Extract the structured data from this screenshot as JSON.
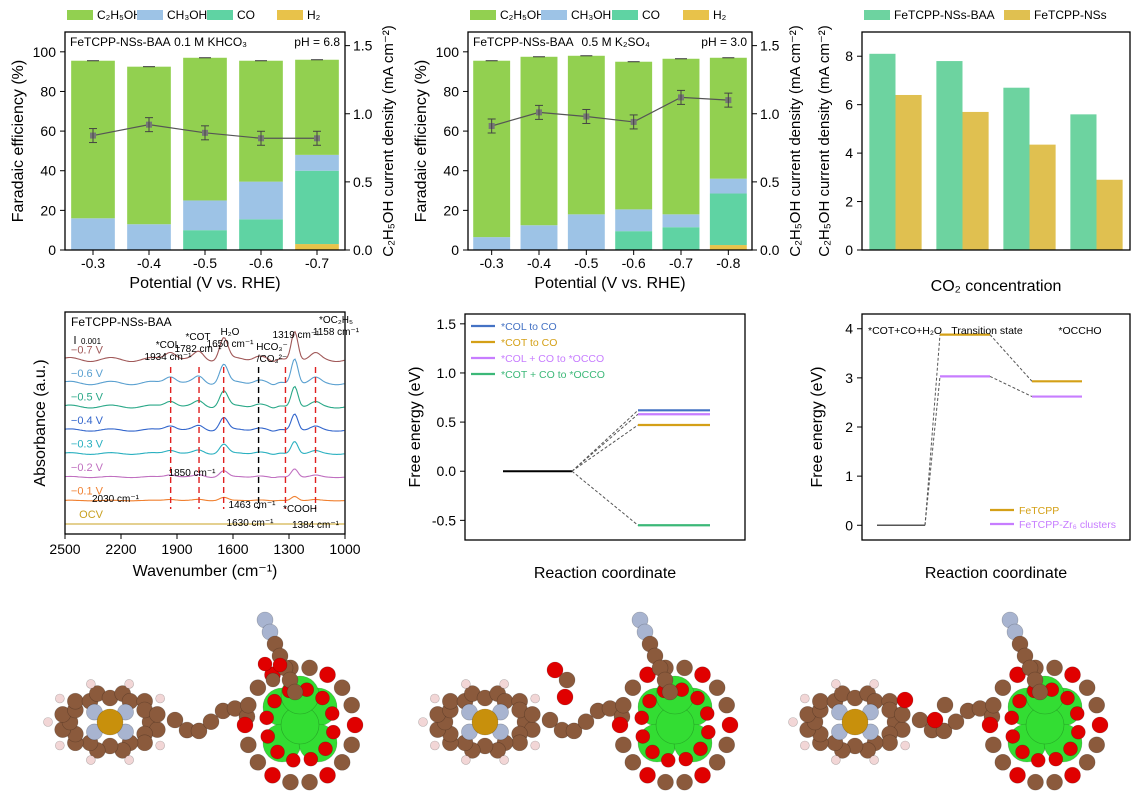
{
  "colors": {
    "c2h5oh": "#92d050",
    "ch3oh": "#9dc3e6",
    "co": "#5fd3a3",
    "h2": "#e8c24a",
    "line": "#555555",
    "baa": "#6dd3a0",
    "nss": "#e0c050",
    "path_co_l": "#4472c4",
    "path_co_t": "#d4a017",
    "path_occo_l": "#c77dff",
    "path_occo_t": "#3cb878",
    "fetcpp": "#d4a017",
    "fetcpp_zr": "#c77dff",
    "atom_c": "#8b5a3c",
    "atom_n": "#a8b4d0",
    "atom_o": "#e00000",
    "atom_h": "#f2d6d6",
    "atom_fe": "#c8900c",
    "atom_zr": "#33dd33"
  },
  "legend_products": [
    "C₂H₅OH",
    "CH₃OH",
    "CO",
    "H₂"
  ],
  "chart_data": [
    {
      "type": "bar",
      "stacked": true,
      "sample": "FeTCPP-NSs-BAA",
      "electrolyte": "0.1 M KHCO₃",
      "ph": "pH = 6.8",
      "xlabel": "Potential (V vs. RHE)",
      "ylabel": "Faradaic efficiency (%)",
      "y2label": "C₂H₅OH current density (mA cm⁻²)",
      "categories": [
        "-0.3",
        "-0.4",
        "-0.5",
        "-0.6",
        "-0.7"
      ],
      "ylim": [
        0,
        110
      ],
      "yticks": [
        0,
        20,
        40,
        60,
        80,
        100
      ],
      "y2lim": [
        0,
        1.6
      ],
      "y2ticks": [
        "0.0",
        "0.5",
        "1.0",
        "1.5"
      ],
      "series": [
        {
          "name": "H₂",
          "values": [
            0,
            0,
            0,
            0,
            3
          ]
        },
        {
          "name": "CO",
          "values": [
            0,
            0,
            10,
            15.5,
            37
          ]
        },
        {
          "name": "CH₃OH",
          "values": [
            16,
            13,
            15,
            19,
            8
          ]
        },
        {
          "name": "C₂H₅OH",
          "values": [
            79.5,
            79.5,
            72,
            61,
            48
          ]
        }
      ],
      "totals": [
        95.5,
        92.5,
        97,
        95.5,
        96
      ],
      "current_density": [
        0.84,
        0.92,
        0.86,
        0.82,
        0.82
      ]
    },
    {
      "type": "bar",
      "stacked": true,
      "sample": "FeTCPP-NSs-BAA",
      "electrolyte": "0.5 M K₂SO₄",
      "ph": "pH = 3.0",
      "xlabel": "Potential (V vs. RHE)",
      "ylabel": "Faradaic efficiency (%)",
      "y2label": "C₂H₅OH current density (mA cm⁻²)",
      "categories": [
        "-0.3",
        "-0.4",
        "-0.5",
        "-0.6",
        "-0.7",
        "-0.8"
      ],
      "ylim": [
        0,
        110
      ],
      "yticks": [
        0,
        20,
        40,
        60,
        80,
        100
      ],
      "y2lim": [
        0,
        1.6
      ],
      "y2ticks": [
        "0.0",
        "0.5",
        "1.0",
        "1.5"
      ],
      "series": [
        {
          "name": "H₂",
          "values": [
            0,
            0,
            0,
            0,
            0,
            2.5
          ]
        },
        {
          "name": "CO",
          "values": [
            0,
            0,
            0,
            9.5,
            11.5,
            26
          ]
        },
        {
          "name": "CH₃OH",
          "values": [
            6.5,
            12.5,
            18,
            11,
            6.5,
            7.5
          ]
        },
        {
          "name": "C₂H₅OH",
          "values": [
            89,
            85,
            80,
            74.5,
            78.5,
            61
          ]
        }
      ],
      "totals": [
        95.5,
        97.5,
        98,
        95,
        96.5,
        97
      ],
      "current_density": [
        0.91,
        1.01,
        0.98,
        0.94,
        1.12,
        1.1
      ]
    },
    {
      "type": "bar",
      "ylabel": "C₂H₅OH current density (mA cm⁻²)",
      "xlabel": "CO₂ concentration",
      "ylim": [
        0,
        9
      ],
      "yticks": [
        0,
        2,
        4,
        6,
        8
      ],
      "series": [
        {
          "name": "FeTCPP-NSs-BAA",
          "values": [
            8.1,
            7.8,
            6.7,
            5.6
          ]
        },
        {
          "name": "FeTCPP-NSs",
          "values": [
            6.4,
            5.7,
            4.35,
            2.9
          ]
        }
      ]
    },
    {
      "type": "line",
      "sample": "FeTCPP-NSs-BAA",
      "xlabel": "Wavenumber (cm⁻¹)",
      "ylabel": "Absorbance (a.u.)",
      "scale_label": "0.001",
      "xlim": [
        2500,
        1000
      ],
      "xticks": [
        "2500",
        "2200",
        "1900",
        "1600",
        "1300",
        "1000"
      ],
      "series_names": [
        "−0.7 V",
        "−0.6 V",
        "−0.5 V",
        "−0.4 V",
        "−0.3 V",
        "−0.2 V",
        "−0.1 V",
        "OCV"
      ],
      "series_colors": [
        "#a05858",
        "#5aa0d0",
        "#2aa888",
        "#3366cc",
        "#2ab0c0",
        "#c070c0",
        "#f08030",
        "#c8a020"
      ],
      "annotations": [
        {
          "text": "*COL",
          "sub": "",
          "line2": "1934 cm⁻¹"
        },
        {
          "text": "*COT",
          "line2": "1782 cm⁻¹"
        },
        {
          "text": "H₂O",
          "line2": "1650 cm⁻¹"
        },
        {
          "text": "HCO₃⁻",
          "line2": "/CO₃²⁻"
        },
        {
          "text": "1319 cm⁻¹"
        },
        {
          "text": "*OC₂H₅",
          "line2": "1158 cm⁻¹"
        },
        {
          "text": "1850 cm⁻¹"
        },
        {
          "text": "2030 cm⁻¹"
        },
        {
          "text": "1463 cm⁻¹"
        },
        {
          "text": "*COOH"
        },
        {
          "text": "1630 cm⁻¹"
        },
        {
          "text": "1384 cm⁻¹"
        }
      ]
    },
    {
      "type": "line",
      "xlabel": "Reaction coordinate",
      "ylabel": "Free energy (eV)",
      "ylim": [
        -0.7,
        1.6
      ],
      "yticks": [
        "-0.5",
        "0.0",
        "0.5",
        "1.0",
        "1.5"
      ],
      "legend": [
        "*COL to CO",
        "*COT to CO",
        "*COL + CO to *OCCO",
        "*COT + CO to *OCCO"
      ],
      "initial": 0.0,
      "final": [
        0.62,
        0.47,
        0.58,
        -0.55
      ]
    },
    {
      "type": "line",
      "xlabel": "Reaction coordinate",
      "ylabel": "Free energy (eV)",
      "ylim": [
        -0.3,
        4.3
      ],
      "yticks": [
        "0",
        "1",
        "2",
        "3",
        "4"
      ],
      "state_labels": [
        "*COT+CO+H₂O",
        "Transition state",
        "*OCCHO"
      ],
      "series": [
        {
          "name": "FeTCPP",
          "values": [
            0,
            3.88,
            2.93
          ]
        },
        {
          "name": "FeTCPP-Zr₆ clusters",
          "values": [
            0,
            3.03,
            2.62
          ]
        }
      ]
    }
  ]
}
